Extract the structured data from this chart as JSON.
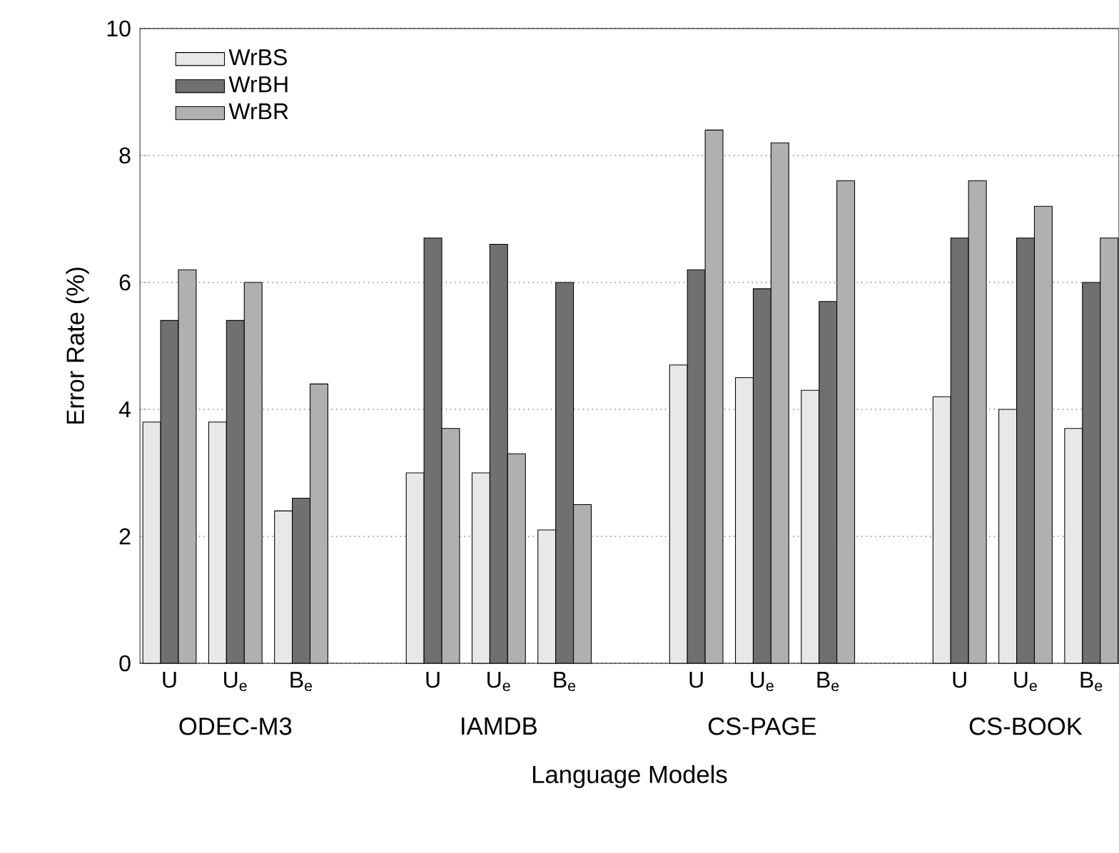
{
  "chart_data": {
    "type": "bar",
    "xlabel": "Language Models",
    "ylabel": "Error Rate (%)",
    "categories": [
      "U",
      "U$_{e}$",
      "B$_{e}$",
      null,
      "U",
      "U$_{e}$",
      "B$_{e}$",
      null,
      "U",
      "U$_{e}$",
      "B$_{e}$",
      null,
      "U",
      "U$_{e}$",
      "B$_{e}$"
    ],
    "series": [
      {
        "name": "WrBS",
        "color": "#e8e8e8",
        "values": [
          3.8,
          3.8,
          2.4,
          null,
          3.0,
          3.0,
          2.1,
          null,
          4.7,
          4.5,
          4.3,
          null,
          4.2,
          4.0,
          3.7
        ]
      },
      {
        "name": "WrBH",
        "color": "#707070",
        "values": [
          5.4,
          5.4,
          2.6,
          null,
          6.7,
          6.6,
          6.0,
          null,
          6.2,
          5.9,
          5.7,
          null,
          6.7,
          6.7,
          6.0
        ]
      },
      {
        "name": "WrBR",
        "color": "#b0b0b0",
        "values": [
          6.2,
          6.0,
          4.4,
          null,
          3.7,
          3.3,
          2.5,
          null,
          8.4,
          8.2,
          7.6,
          null,
          7.6,
          7.2,
          6.7
        ]
      }
    ],
    "annotations": [
      "ODEC-M3",
      "IAMDB",
      "CS-PAGE",
      "CS-BOOK"
    ],
    "ylim": [
      0,
      10
    ],
    "yticks": [
      0,
      2,
      4,
      6,
      8,
      10
    ],
    "grid": "y",
    "legend": "top left"
  }
}
